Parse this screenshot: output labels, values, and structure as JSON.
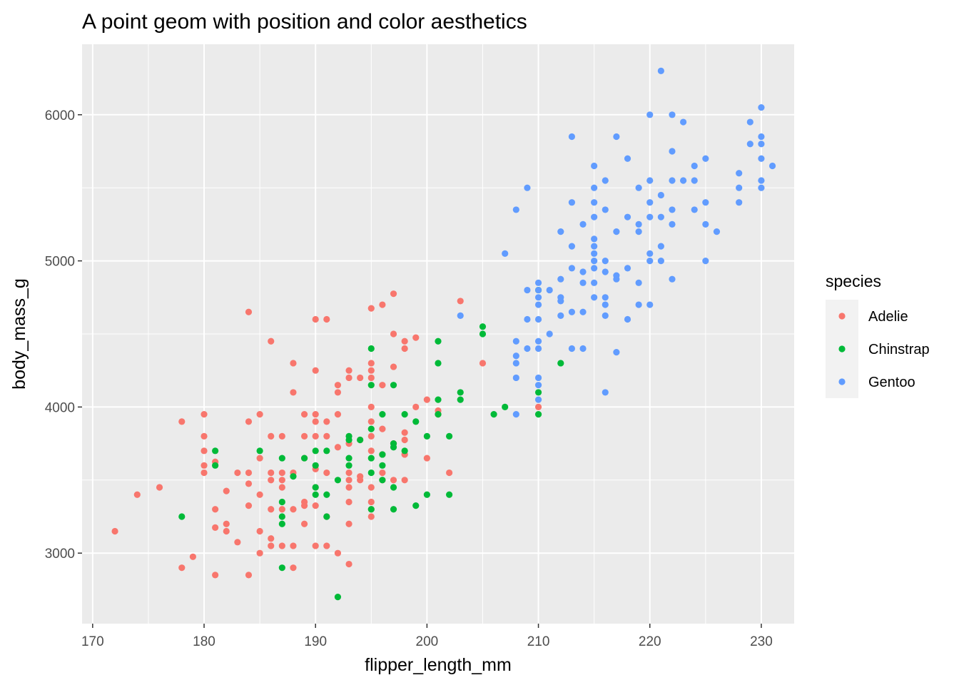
{
  "chart_data": {
    "type": "scatter",
    "title": "A point geom with position and color aesthetics",
    "xlabel": "flipper_length_mm",
    "ylabel": "body_mass_g",
    "xlim": [
      169.05,
      232.95
    ],
    "ylim": [
      2517.5,
      6482.5
    ],
    "x_ticks": [
      170,
      180,
      190,
      200,
      210,
      220,
      230
    ],
    "y_ticks": [
      3000,
      4000,
      5000,
      6000
    ],
    "x_tick_labels": [
      "170",
      "180",
      "190",
      "200",
      "210",
      "220",
      "230"
    ],
    "y_tick_labels": [
      "3000",
      "4000",
      "5000",
      "6000"
    ],
    "grid": true,
    "legend": {
      "title": "species",
      "position": "right"
    },
    "series": [
      {
        "name": "Adelie",
        "color": "#F8766D",
        "points": [
          [
            172,
            3150
          ],
          [
            174,
            3400
          ],
          [
            176,
            3450
          ],
          [
            178,
            2900
          ],
          [
            178,
            3900
          ],
          [
            179,
            2975
          ],
          [
            180,
            3550
          ],
          [
            180,
            3600
          ],
          [
            180,
            3700
          ],
          [
            180,
            3800
          ],
          [
            180,
            3950
          ],
          [
            181,
            2850
          ],
          [
            181,
            3175
          ],
          [
            181,
            3300
          ],
          [
            181,
            3625
          ],
          [
            182,
            3200
          ],
          [
            182,
            3425
          ],
          [
            182,
            3150
          ],
          [
            183,
            3075
          ],
          [
            183,
            3550
          ],
          [
            184,
            2850
          ],
          [
            184,
            3325
          ],
          [
            184,
            3475
          ],
          [
            184,
            3550
          ],
          [
            184,
            3900
          ],
          [
            184,
            4650
          ],
          [
            185,
            3000
          ],
          [
            185,
            3150
          ],
          [
            185,
            3400
          ],
          [
            185,
            3650
          ],
          [
            185,
            3950
          ],
          [
            186,
            3050
          ],
          [
            186,
            3100
          ],
          [
            186,
            3300
          ],
          [
            186,
            3500
          ],
          [
            186,
            3550
          ],
          [
            186,
            3800
          ],
          [
            186,
            4450
          ],
          [
            187,
            3050
          ],
          [
            187,
            3300
          ],
          [
            187,
            3450
          ],
          [
            187,
            3500
          ],
          [
            187,
            3550
          ],
          [
            187,
            3800
          ],
          [
            188,
            2900
          ],
          [
            188,
            3050
          ],
          [
            188,
            3300
          ],
          [
            188,
            3550
          ],
          [
            188,
            4100
          ],
          [
            188,
            4300
          ],
          [
            189,
            3200
          ],
          [
            189,
            3325
          ],
          [
            189,
            3350
          ],
          [
            189,
            3650
          ],
          [
            189,
            3800
          ],
          [
            189,
            3950
          ],
          [
            190,
            3050
          ],
          [
            190,
            3325
          ],
          [
            190,
            3450
          ],
          [
            190,
            3575
          ],
          [
            190,
            3800
          ],
          [
            190,
            3900
          ],
          [
            190,
            3950
          ],
          [
            190,
            4250
          ],
          [
            190,
            4600
          ],
          [
            191,
            3050
          ],
          [
            191,
            3250
          ],
          [
            191,
            3550
          ],
          [
            191,
            3800
          ],
          [
            191,
            3900
          ],
          [
            191,
            4600
          ],
          [
            192,
            3000
          ],
          [
            192,
            3725
          ],
          [
            192,
            3950
          ],
          [
            192,
            4100
          ],
          [
            192,
            4150
          ],
          [
            193,
            2925
          ],
          [
            193,
            3200
          ],
          [
            193,
            3350
          ],
          [
            193,
            3450
          ],
          [
            193,
            3500
          ],
          [
            193,
            3550
          ],
          [
            193,
            3750
          ],
          [
            193,
            4200
          ],
          [
            193,
            4250
          ],
          [
            194,
            3500
          ],
          [
            194,
            3525
          ],
          [
            194,
            3775
          ],
          [
            194,
            4200
          ],
          [
            195,
            3250
          ],
          [
            195,
            3300
          ],
          [
            195,
            3350
          ],
          [
            195,
            3450
          ],
          [
            195,
            3700
          ],
          [
            195,
            3800
          ],
          [
            195,
            3900
          ],
          [
            195,
            4000
          ],
          [
            195,
            4200
          ],
          [
            195,
            4250
          ],
          [
            195,
            4300
          ],
          [
            195,
            4675
          ],
          [
            196,
            3500
          ],
          [
            196,
            3550
          ],
          [
            196,
            3675
          ],
          [
            196,
            3850
          ],
          [
            196,
            4150
          ],
          [
            196,
            4700
          ],
          [
            197,
            3500
          ],
          [
            197,
            3750
          ],
          [
            197,
            4275
          ],
          [
            197,
            4500
          ],
          [
            197,
            4775
          ],
          [
            198,
            3500
          ],
          [
            198,
            3675
          ],
          [
            198,
            3775
          ],
          [
            198,
            3825
          ],
          [
            198,
            4400
          ],
          [
            198,
            4450
          ],
          [
            199,
            4000
          ],
          [
            199,
            4475
          ],
          [
            200,
            3650
          ],
          [
            200,
            4050
          ],
          [
            201,
            3975
          ],
          [
            201,
            3950
          ],
          [
            202,
            3550
          ],
          [
            203,
            4725
          ],
          [
            205,
            4300
          ],
          [
            210,
            4000
          ]
        ]
      },
      {
        "name": "Chinstrap",
        "color": "#00BA38",
        "points": [
          [
            178,
            3250
          ],
          [
            181,
            3600
          ],
          [
            181,
            3700
          ],
          [
            185,
            3700
          ],
          [
            187,
            2900
          ],
          [
            187,
            3200
          ],
          [
            187,
            3250
          ],
          [
            187,
            3350
          ],
          [
            187,
            3650
          ],
          [
            188,
            3525
          ],
          [
            189,
            3650
          ],
          [
            190,
            3400
          ],
          [
            190,
            3450
          ],
          [
            190,
            3600
          ],
          [
            190,
            3700
          ],
          [
            191,
            3250
          ],
          [
            191,
            3400
          ],
          [
            191,
            3700
          ],
          [
            192,
            2700
          ],
          [
            192,
            3500
          ],
          [
            193,
            3600
          ],
          [
            193,
            3650
          ],
          [
            193,
            3775
          ],
          [
            193,
            3800
          ],
          [
            194,
            3775
          ],
          [
            195,
            3300
          ],
          [
            195,
            3550
          ],
          [
            195,
            3650
          ],
          [
            195,
            3850
          ],
          [
            195,
            4150
          ],
          [
            195,
            4400
          ],
          [
            196,
            3500
          ],
          [
            196,
            3600
          ],
          [
            196,
            3675
          ],
          [
            196,
            3950
          ],
          [
            197,
            3300
          ],
          [
            197,
            3450
          ],
          [
            197,
            3725
          ],
          [
            197,
            3750
          ],
          [
            197,
            4150
          ],
          [
            198,
            3700
          ],
          [
            198,
            3950
          ],
          [
            199,
            3325
          ],
          [
            199,
            3900
          ],
          [
            200,
            3400
          ],
          [
            200,
            3800
          ],
          [
            201,
            3950
          ],
          [
            201,
            4050
          ],
          [
            201,
            4300
          ],
          [
            201,
            4450
          ],
          [
            202,
            3400
          ],
          [
            202,
            3800
          ],
          [
            203,
            4050
          ],
          [
            203,
            4100
          ],
          [
            205,
            4500
          ],
          [
            205,
            4550
          ],
          [
            206,
            3950
          ],
          [
            207,
            4000
          ],
          [
            210,
            3950
          ],
          [
            210,
            4100
          ],
          [
            210,
            4800
          ],
          [
            212,
            4300
          ]
        ]
      },
      {
        "name": "Gentoo",
        "color": "#619CFF",
        "points": [
          [
            203,
            4625
          ],
          [
            207,
            5050
          ],
          [
            208,
            3950
          ],
          [
            208,
            4200
          ],
          [
            208,
            4300
          ],
          [
            208,
            4350
          ],
          [
            208,
            4450
          ],
          [
            208,
            5350
          ],
          [
            209,
            4400
          ],
          [
            209,
            4600
          ],
          [
            209,
            4800
          ],
          [
            209,
            5500
          ],
          [
            210,
            4050
          ],
          [
            210,
            4150
          ],
          [
            210,
            4200
          ],
          [
            210,
            4400
          ],
          [
            210,
            4450
          ],
          [
            210,
            4600
          ],
          [
            210,
            4700
          ],
          [
            210,
            4750
          ],
          [
            210,
            4800
          ],
          [
            210,
            4850
          ],
          [
            211,
            4500
          ],
          [
            211,
            4800
          ],
          [
            212,
            4625
          ],
          [
            212,
            4725
          ],
          [
            212,
            4750
          ],
          [
            212,
            4875
          ],
          [
            212,
            5200
          ],
          [
            213,
            4400
          ],
          [
            213,
            4650
          ],
          [
            213,
            4950
          ],
          [
            213,
            5100
          ],
          [
            213,
            5400
          ],
          [
            213,
            5850
          ],
          [
            214,
            4400
          ],
          [
            214,
            4650
          ],
          [
            214,
            4850
          ],
          [
            214,
            4925
          ],
          [
            214,
            5250
          ],
          [
            215,
            4750
          ],
          [
            215,
            4850
          ],
          [
            215,
            4950
          ],
          [
            215,
            5000
          ],
          [
            215,
            5050
          ],
          [
            215,
            5100
          ],
          [
            215,
            5150
          ],
          [
            215,
            5300
          ],
          [
            215,
            5400
          ],
          [
            215,
            5500
          ],
          [
            215,
            5650
          ],
          [
            216,
            4100
          ],
          [
            216,
            4625
          ],
          [
            216,
            4700
          ],
          [
            216,
            4750
          ],
          [
            216,
            4925
          ],
          [
            216,
            5000
          ],
          [
            216,
            5350
          ],
          [
            216,
            5550
          ],
          [
            217,
            4375
          ],
          [
            217,
            4875
          ],
          [
            217,
            4900
          ],
          [
            217,
            5200
          ],
          [
            217,
            5850
          ],
          [
            218,
            4600
          ],
          [
            218,
            4950
          ],
          [
            218,
            5300
          ],
          [
            218,
            5700
          ],
          [
            219,
            4700
          ],
          [
            219,
            4850
          ],
          [
            219,
            5200
          ],
          [
            219,
            5250
          ],
          [
            219,
            5500
          ],
          [
            220,
            4700
          ],
          [
            220,
            5000
          ],
          [
            220,
            5050
          ],
          [
            220,
            5300
          ],
          [
            220,
            5400
          ],
          [
            220,
            5550
          ],
          [
            220,
            6000
          ],
          [
            221,
            5000
          ],
          [
            221,
            5100
          ],
          [
            221,
            5300
          ],
          [
            221,
            5450
          ],
          [
            221,
            6300
          ],
          [
            222,
            4875
          ],
          [
            222,
            5250
          ],
          [
            222,
            5350
          ],
          [
            222,
            5550
          ],
          [
            222,
            5750
          ],
          [
            222,
            6000
          ],
          [
            223,
            5550
          ],
          [
            223,
            5950
          ],
          [
            224,
            5350
          ],
          [
            224,
            5550
          ],
          [
            224,
            5650
          ],
          [
            225,
            5000
          ],
          [
            225,
            5250
          ],
          [
            225,
            5400
          ],
          [
            225,
            5700
          ],
          [
            226,
            5200
          ],
          [
            228,
            5400
          ],
          [
            228,
            5500
          ],
          [
            228,
            5600
          ],
          [
            229,
            5800
          ],
          [
            229,
            5950
          ],
          [
            230,
            5500
          ],
          [
            230,
            5550
          ],
          [
            230,
            5700
          ],
          [
            230,
            5800
          ],
          [
            230,
            5850
          ],
          [
            230,
            6050
          ],
          [
            231,
            5650
          ]
        ]
      }
    ]
  }
}
